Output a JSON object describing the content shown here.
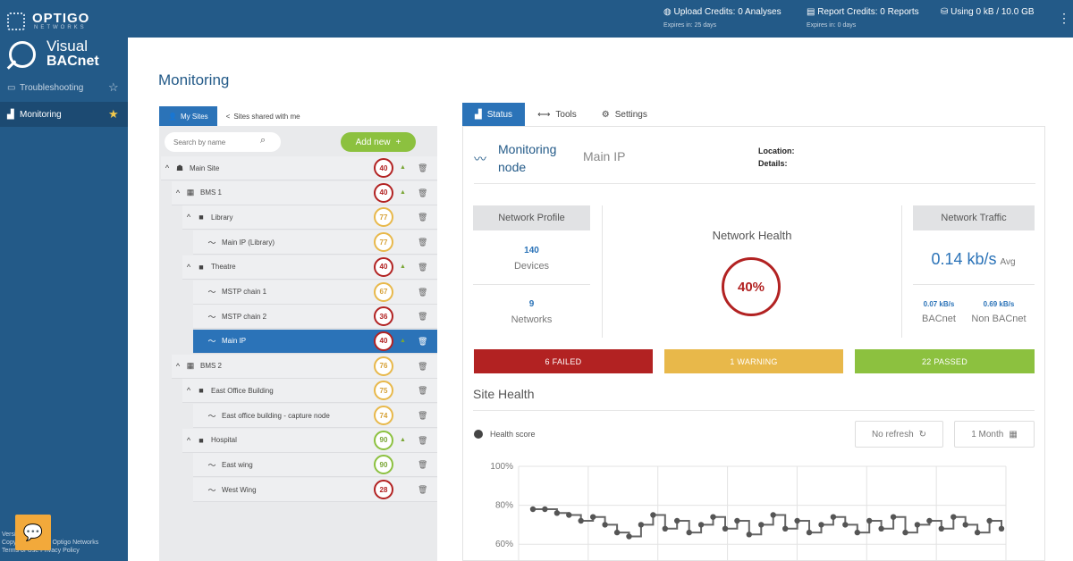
{
  "app": {
    "brand": "OPTIGO",
    "brand_sub": "NETWORKS",
    "product_line1": "Visual",
    "product_line2": "BACnet"
  },
  "topbar": {
    "upload_credits": "Upload Credits: 0 Analyses",
    "upload_expires": "Expires in: 25 days",
    "report_credits": "Report Credits: 0 Reports",
    "report_expires": "Expires in: 0 days",
    "storage": "Using 0 kB / 10.0 GB"
  },
  "sidebar": {
    "items": [
      {
        "label": "Troubleshooting",
        "active": false
      },
      {
        "label": "Monitoring",
        "active": true
      }
    ],
    "footer_line1": "Version",
    "footer_line2": "Copyright © 2018 Optigo Networks",
    "footer_line3": "Terms of Use  Privacy Policy"
  },
  "page": {
    "title": "Monitoring"
  },
  "tree": {
    "tabs": [
      "My Sites",
      "Sites shared with me"
    ],
    "search_placeholder": "Search by name",
    "add_label": "Add new",
    "rows": [
      {
        "name": "Main Site",
        "score": "40",
        "level": "red",
        "trend": true
      },
      {
        "name": "BMS 1",
        "score": "40",
        "level": "red",
        "trend": true
      },
      {
        "name": "Library",
        "score": "77",
        "level": "yellow",
        "trend": false
      },
      {
        "name": "Main IP (Library)",
        "score": "77",
        "level": "yellow",
        "trend": false
      },
      {
        "name": "Theatre",
        "score": "40",
        "level": "red",
        "trend": true
      },
      {
        "name": "MSTP chain 1",
        "score": "67",
        "level": "yellow",
        "trend": false
      },
      {
        "name": "MSTP chain 2",
        "score": "36",
        "level": "red",
        "trend": false
      },
      {
        "name": "Main IP",
        "score": "40",
        "level": "red",
        "trend": true
      },
      {
        "name": "BMS 2",
        "score": "76",
        "level": "yellow",
        "trend": false
      },
      {
        "name": "East Office Building",
        "score": "75",
        "level": "yellow",
        "trend": false
      },
      {
        "name": "East office building - capture node",
        "score": "74",
        "level": "yellow",
        "trend": false
      },
      {
        "name": "Hospital",
        "score": "90",
        "level": "green",
        "trend": true
      },
      {
        "name": "East wing",
        "score": "90",
        "level": "green",
        "trend": false
      },
      {
        "name": "West Wing",
        "score": "28",
        "level": "red",
        "trend": false
      }
    ]
  },
  "tabs": [
    "Status",
    "Tools",
    "Settings"
  ],
  "node": {
    "title_line1": "Monitoring",
    "title_line2": "node",
    "name": "Main IP",
    "location_label": "Location:",
    "details_label": "Details:"
  },
  "network_profile": {
    "header": "Network Profile",
    "devices_value": "140",
    "devices_label": "Devices",
    "networks_value": "9",
    "networks_label": "Networks"
  },
  "network_health": {
    "title": "Network Health",
    "value": "40%",
    "percent": 40
  },
  "network_traffic": {
    "header": "Network Traffic",
    "value": "0.14 kb/s",
    "avg_label": "Avg",
    "bacnet_value": "0.07 kB/s",
    "bacnet_label": "BACnet",
    "non_bacnet_value": "0.69 kB/s",
    "non_bacnet_label": "Non BACnet"
  },
  "checks": {
    "failed": "6 FAILED",
    "warning": "1 WARNING",
    "passed": "22 PASSED"
  },
  "site_health": {
    "title": "Site Health",
    "legend": "Health score",
    "refresh": "No refresh",
    "range": "1 Month"
  },
  "colors": {
    "primary": "#235a88",
    "accent": "#2b73b8",
    "failed": "#b22222",
    "warning": "#e8b84a",
    "passed": "#8cc13f"
  },
  "chart_data": {
    "type": "line",
    "ylabel": "",
    "ytick_labels": [
      "100%",
      "80%",
      "60%"
    ],
    "ylim": [
      55,
      100
    ],
    "series": [
      {
        "values": [
          78,
          78,
          76,
          75,
          72,
          74,
          70,
          66,
          64,
          70,
          75,
          68,
          72,
          66,
          70,
          74,
          68,
          72,
          65,
          70,
          75,
          68,
          72,
          66,
          70,
          74,
          70,
          66,
          72,
          68,
          74,
          66,
          70,
          72,
          68,
          74,
          70,
          66,
          72,
          68
        ]
      }
    ]
  }
}
